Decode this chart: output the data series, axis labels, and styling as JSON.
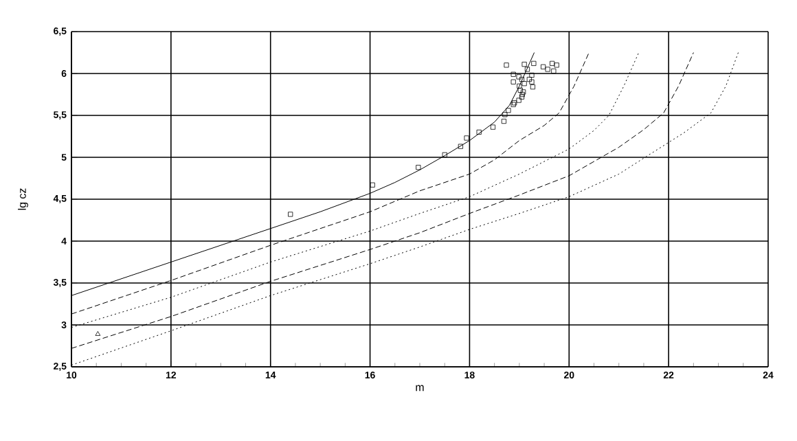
{
  "chart_data": {
    "type": "line",
    "xlabel": "m",
    "ylabel": "lg cz",
    "xlim": [
      10,
      24
    ],
    "xticks": [
      10,
      12,
      14,
      16,
      18,
      20,
      22,
      24
    ],
    "ylim": [
      2.5,
      6.5
    ],
    "yticks": [
      {
        "value": 2.5,
        "label": "2,5"
      },
      3,
      {
        "value": 3.5,
        "label": "3,5"
      },
      4,
      {
        "value": 4.5,
        "label": "4,5"
      },
      5,
      {
        "value": 5.5,
        "label": "5,5"
      },
      6,
      {
        "value": 6.5,
        "label": "6,5"
      }
    ],
    "grid": true,
    "series": [
      {
        "color": "#000000",
        "line_style": "solid",
        "marker": "none",
        "x": [
          10,
          11,
          12,
          13,
          14,
          15,
          16,
          16.5,
          17,
          17.5,
          18,
          18.5,
          18.8,
          19.0,
          19.15,
          19.3
        ],
        "values": [
          3.35,
          3.55,
          3.75,
          3.95,
          4.15,
          4.35,
          4.57,
          4.7,
          4.85,
          5.02,
          5.2,
          5.42,
          5.62,
          5.85,
          6.05,
          6.25
        ]
      },
      {
        "color": "#000000",
        "line_style": "dashed",
        "marker": "none",
        "x": [
          10,
          12,
          14,
          16,
          17,
          18,
          18.5,
          19,
          19.5,
          19.8,
          20.1,
          20.4
        ],
        "values": [
          3.13,
          3.53,
          3.95,
          4.35,
          4.6,
          4.8,
          4.97,
          5.2,
          5.38,
          5.53,
          5.85,
          6.25
        ]
      },
      {
        "color": "#000000",
        "line_style": "dotted",
        "marker": "none",
        "x": [
          10,
          12,
          14,
          16,
          17,
          18,
          19,
          20,
          20.5,
          20.8,
          21.1,
          21.4
        ],
        "values": [
          2.97,
          3.33,
          3.75,
          4.12,
          4.33,
          4.53,
          4.8,
          5.1,
          5.32,
          5.5,
          5.85,
          6.25
        ]
      },
      {
        "color": "#000000",
        "line_style": "dashed",
        "marker": "none",
        "x": [
          10,
          12,
          14,
          16,
          17,
          18,
          19,
          20,
          21,
          21.5,
          21.9,
          22.2,
          22.5
        ],
        "values": [
          2.72,
          3.1,
          3.52,
          3.9,
          4.1,
          4.33,
          4.55,
          4.78,
          5.12,
          5.33,
          5.53,
          5.85,
          6.25
        ]
      },
      {
        "color": "#000000",
        "line_style": "dotted",
        "marker": "none",
        "x": [
          10,
          12,
          14,
          16,
          17,
          18,
          19,
          20,
          21,
          21.5,
          22.3,
          22.85,
          23.15,
          23.4
        ],
        "values": [
          2.52,
          2.93,
          3.35,
          3.73,
          3.93,
          4.14,
          4.33,
          4.53,
          4.8,
          4.99,
          5.29,
          5.53,
          5.85,
          6.25
        ]
      },
      {
        "type": "scatter",
        "color": "#000000",
        "marker": "square",
        "x": [
          14.4,
          16.05,
          16.97,
          17.5,
          17.82,
          17.94,
          18.19,
          18.47,
          18.69,
          18.71,
          18.78,
          18.88,
          18.9,
          18.99,
          19.05,
          19.08,
          19.0,
          19.25,
          19.27,
          18.74,
          18.88,
          18.88,
          19.1,
          19.29,
          19.16,
          19.25,
          19.2,
          19.48,
          19.57,
          19.66,
          19.75,
          19.69,
          19.05,
          18.99,
          19.1,
          19.02,
          19.06
        ],
        "values": [
          4.32,
          4.67,
          4.88,
          5.03,
          5.13,
          5.23,
          5.3,
          5.36,
          5.43,
          5.51,
          5.56,
          5.63,
          5.65,
          5.68,
          5.72,
          5.78,
          5.85,
          5.9,
          5.84,
          6.1,
          5.99,
          5.9,
          6.11,
          6.12,
          6.05,
          5.98,
          5.93,
          6.08,
          6.05,
          6.12,
          6.1,
          6.03,
          5.93,
          5.96,
          5.88,
          5.8,
          5.75
        ]
      },
      {
        "type": "scatter",
        "color": "#000000",
        "marker": "triangle",
        "x": [
          10.53
        ],
        "values": [
          2.89
        ]
      }
    ]
  }
}
